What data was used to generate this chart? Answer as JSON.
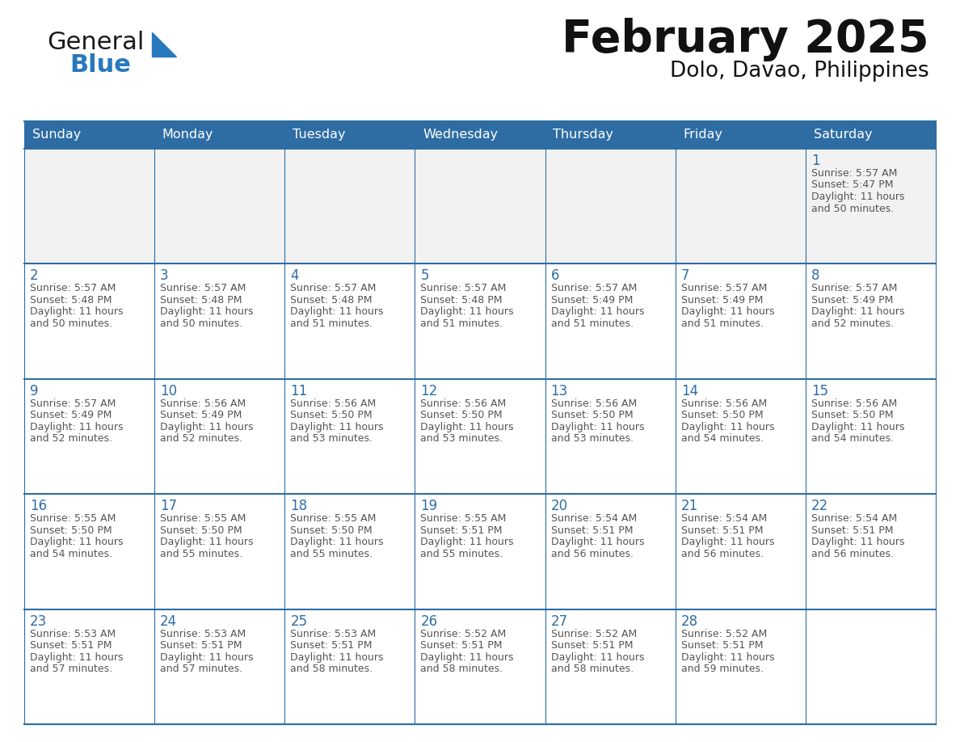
{
  "title": "February 2025",
  "subtitle": "Dolo, Davao, Philippines",
  "header_bg": "#2E6DA4",
  "header_text_color": "#FFFFFF",
  "cell_border_color": "#2E6DA4",
  "day_number_color": "#2E6DA4",
  "info_text_color": "#555555",
  "bg_color": "#FFFFFF",
  "row1_bg": "#F2F2F2",
  "days_of_week": [
    "Sunday",
    "Monday",
    "Tuesday",
    "Wednesday",
    "Thursday",
    "Friday",
    "Saturday"
  ],
  "calendar_data": [
    [
      null,
      null,
      null,
      null,
      null,
      null,
      {
        "day": 1,
        "sunrise": "5:57 AM",
        "sunset": "5:47 PM",
        "daylight_line1": "11 hours",
        "daylight_line2": "and 50 minutes."
      }
    ],
    [
      {
        "day": 2,
        "sunrise": "5:57 AM",
        "sunset": "5:48 PM",
        "daylight_line1": "11 hours",
        "daylight_line2": "and 50 minutes."
      },
      {
        "day": 3,
        "sunrise": "5:57 AM",
        "sunset": "5:48 PM",
        "daylight_line1": "11 hours",
        "daylight_line2": "and 50 minutes."
      },
      {
        "day": 4,
        "sunrise": "5:57 AM",
        "sunset": "5:48 PM",
        "daylight_line1": "11 hours",
        "daylight_line2": "and 51 minutes."
      },
      {
        "day": 5,
        "sunrise": "5:57 AM",
        "sunset": "5:48 PM",
        "daylight_line1": "11 hours",
        "daylight_line2": "and 51 minutes."
      },
      {
        "day": 6,
        "sunrise": "5:57 AM",
        "sunset": "5:49 PM",
        "daylight_line1": "11 hours",
        "daylight_line2": "and 51 minutes."
      },
      {
        "day": 7,
        "sunrise": "5:57 AM",
        "sunset": "5:49 PM",
        "daylight_line1": "11 hours",
        "daylight_line2": "and 51 minutes."
      },
      {
        "day": 8,
        "sunrise": "5:57 AM",
        "sunset": "5:49 PM",
        "daylight_line1": "11 hours",
        "daylight_line2": "and 52 minutes."
      }
    ],
    [
      {
        "day": 9,
        "sunrise": "5:57 AM",
        "sunset": "5:49 PM",
        "daylight_line1": "11 hours",
        "daylight_line2": "and 52 minutes."
      },
      {
        "day": 10,
        "sunrise": "5:56 AM",
        "sunset": "5:49 PM",
        "daylight_line1": "11 hours",
        "daylight_line2": "and 52 minutes."
      },
      {
        "day": 11,
        "sunrise": "5:56 AM",
        "sunset": "5:50 PM",
        "daylight_line1": "11 hours",
        "daylight_line2": "and 53 minutes."
      },
      {
        "day": 12,
        "sunrise": "5:56 AM",
        "sunset": "5:50 PM",
        "daylight_line1": "11 hours",
        "daylight_line2": "and 53 minutes."
      },
      {
        "day": 13,
        "sunrise": "5:56 AM",
        "sunset": "5:50 PM",
        "daylight_line1": "11 hours",
        "daylight_line2": "and 53 minutes."
      },
      {
        "day": 14,
        "sunrise": "5:56 AM",
        "sunset": "5:50 PM",
        "daylight_line1": "11 hours",
        "daylight_line2": "and 54 minutes."
      },
      {
        "day": 15,
        "sunrise": "5:56 AM",
        "sunset": "5:50 PM",
        "daylight_line1": "11 hours",
        "daylight_line2": "and 54 minutes."
      }
    ],
    [
      {
        "day": 16,
        "sunrise": "5:55 AM",
        "sunset": "5:50 PM",
        "daylight_line1": "11 hours",
        "daylight_line2": "and 54 minutes."
      },
      {
        "day": 17,
        "sunrise": "5:55 AM",
        "sunset": "5:50 PM",
        "daylight_line1": "11 hours",
        "daylight_line2": "and 55 minutes."
      },
      {
        "day": 18,
        "sunrise": "5:55 AM",
        "sunset": "5:50 PM",
        "daylight_line1": "11 hours",
        "daylight_line2": "and 55 minutes."
      },
      {
        "day": 19,
        "sunrise": "5:55 AM",
        "sunset": "5:51 PM",
        "daylight_line1": "11 hours",
        "daylight_line2": "and 55 minutes."
      },
      {
        "day": 20,
        "sunrise": "5:54 AM",
        "sunset": "5:51 PM",
        "daylight_line1": "11 hours",
        "daylight_line2": "and 56 minutes."
      },
      {
        "day": 21,
        "sunrise": "5:54 AM",
        "sunset": "5:51 PM",
        "daylight_line1": "11 hours",
        "daylight_line2": "and 56 minutes."
      },
      {
        "day": 22,
        "sunrise": "5:54 AM",
        "sunset": "5:51 PM",
        "daylight_line1": "11 hours",
        "daylight_line2": "and 56 minutes."
      }
    ],
    [
      {
        "day": 23,
        "sunrise": "5:53 AM",
        "sunset": "5:51 PM",
        "daylight_line1": "11 hours",
        "daylight_line2": "and 57 minutes."
      },
      {
        "day": 24,
        "sunrise": "5:53 AM",
        "sunset": "5:51 PM",
        "daylight_line1": "11 hours",
        "daylight_line2": "and 57 minutes."
      },
      {
        "day": 25,
        "sunrise": "5:53 AM",
        "sunset": "5:51 PM",
        "daylight_line1": "11 hours",
        "daylight_line2": "and 58 minutes."
      },
      {
        "day": 26,
        "sunrise": "5:52 AM",
        "sunset": "5:51 PM",
        "daylight_line1": "11 hours",
        "daylight_line2": "and 58 minutes."
      },
      {
        "day": 27,
        "sunrise": "5:52 AM",
        "sunset": "5:51 PM",
        "daylight_line1": "11 hours",
        "daylight_line2": "and 58 minutes."
      },
      {
        "day": 28,
        "sunrise": "5:52 AM",
        "sunset": "5:51 PM",
        "daylight_line1": "11 hours",
        "daylight_line2": "and 59 minutes."
      },
      null
    ]
  ],
  "logo_general_color": "#1a1a1a",
  "logo_blue_color": "#2779BD",
  "logo_triangle_color": "#2779BD"
}
